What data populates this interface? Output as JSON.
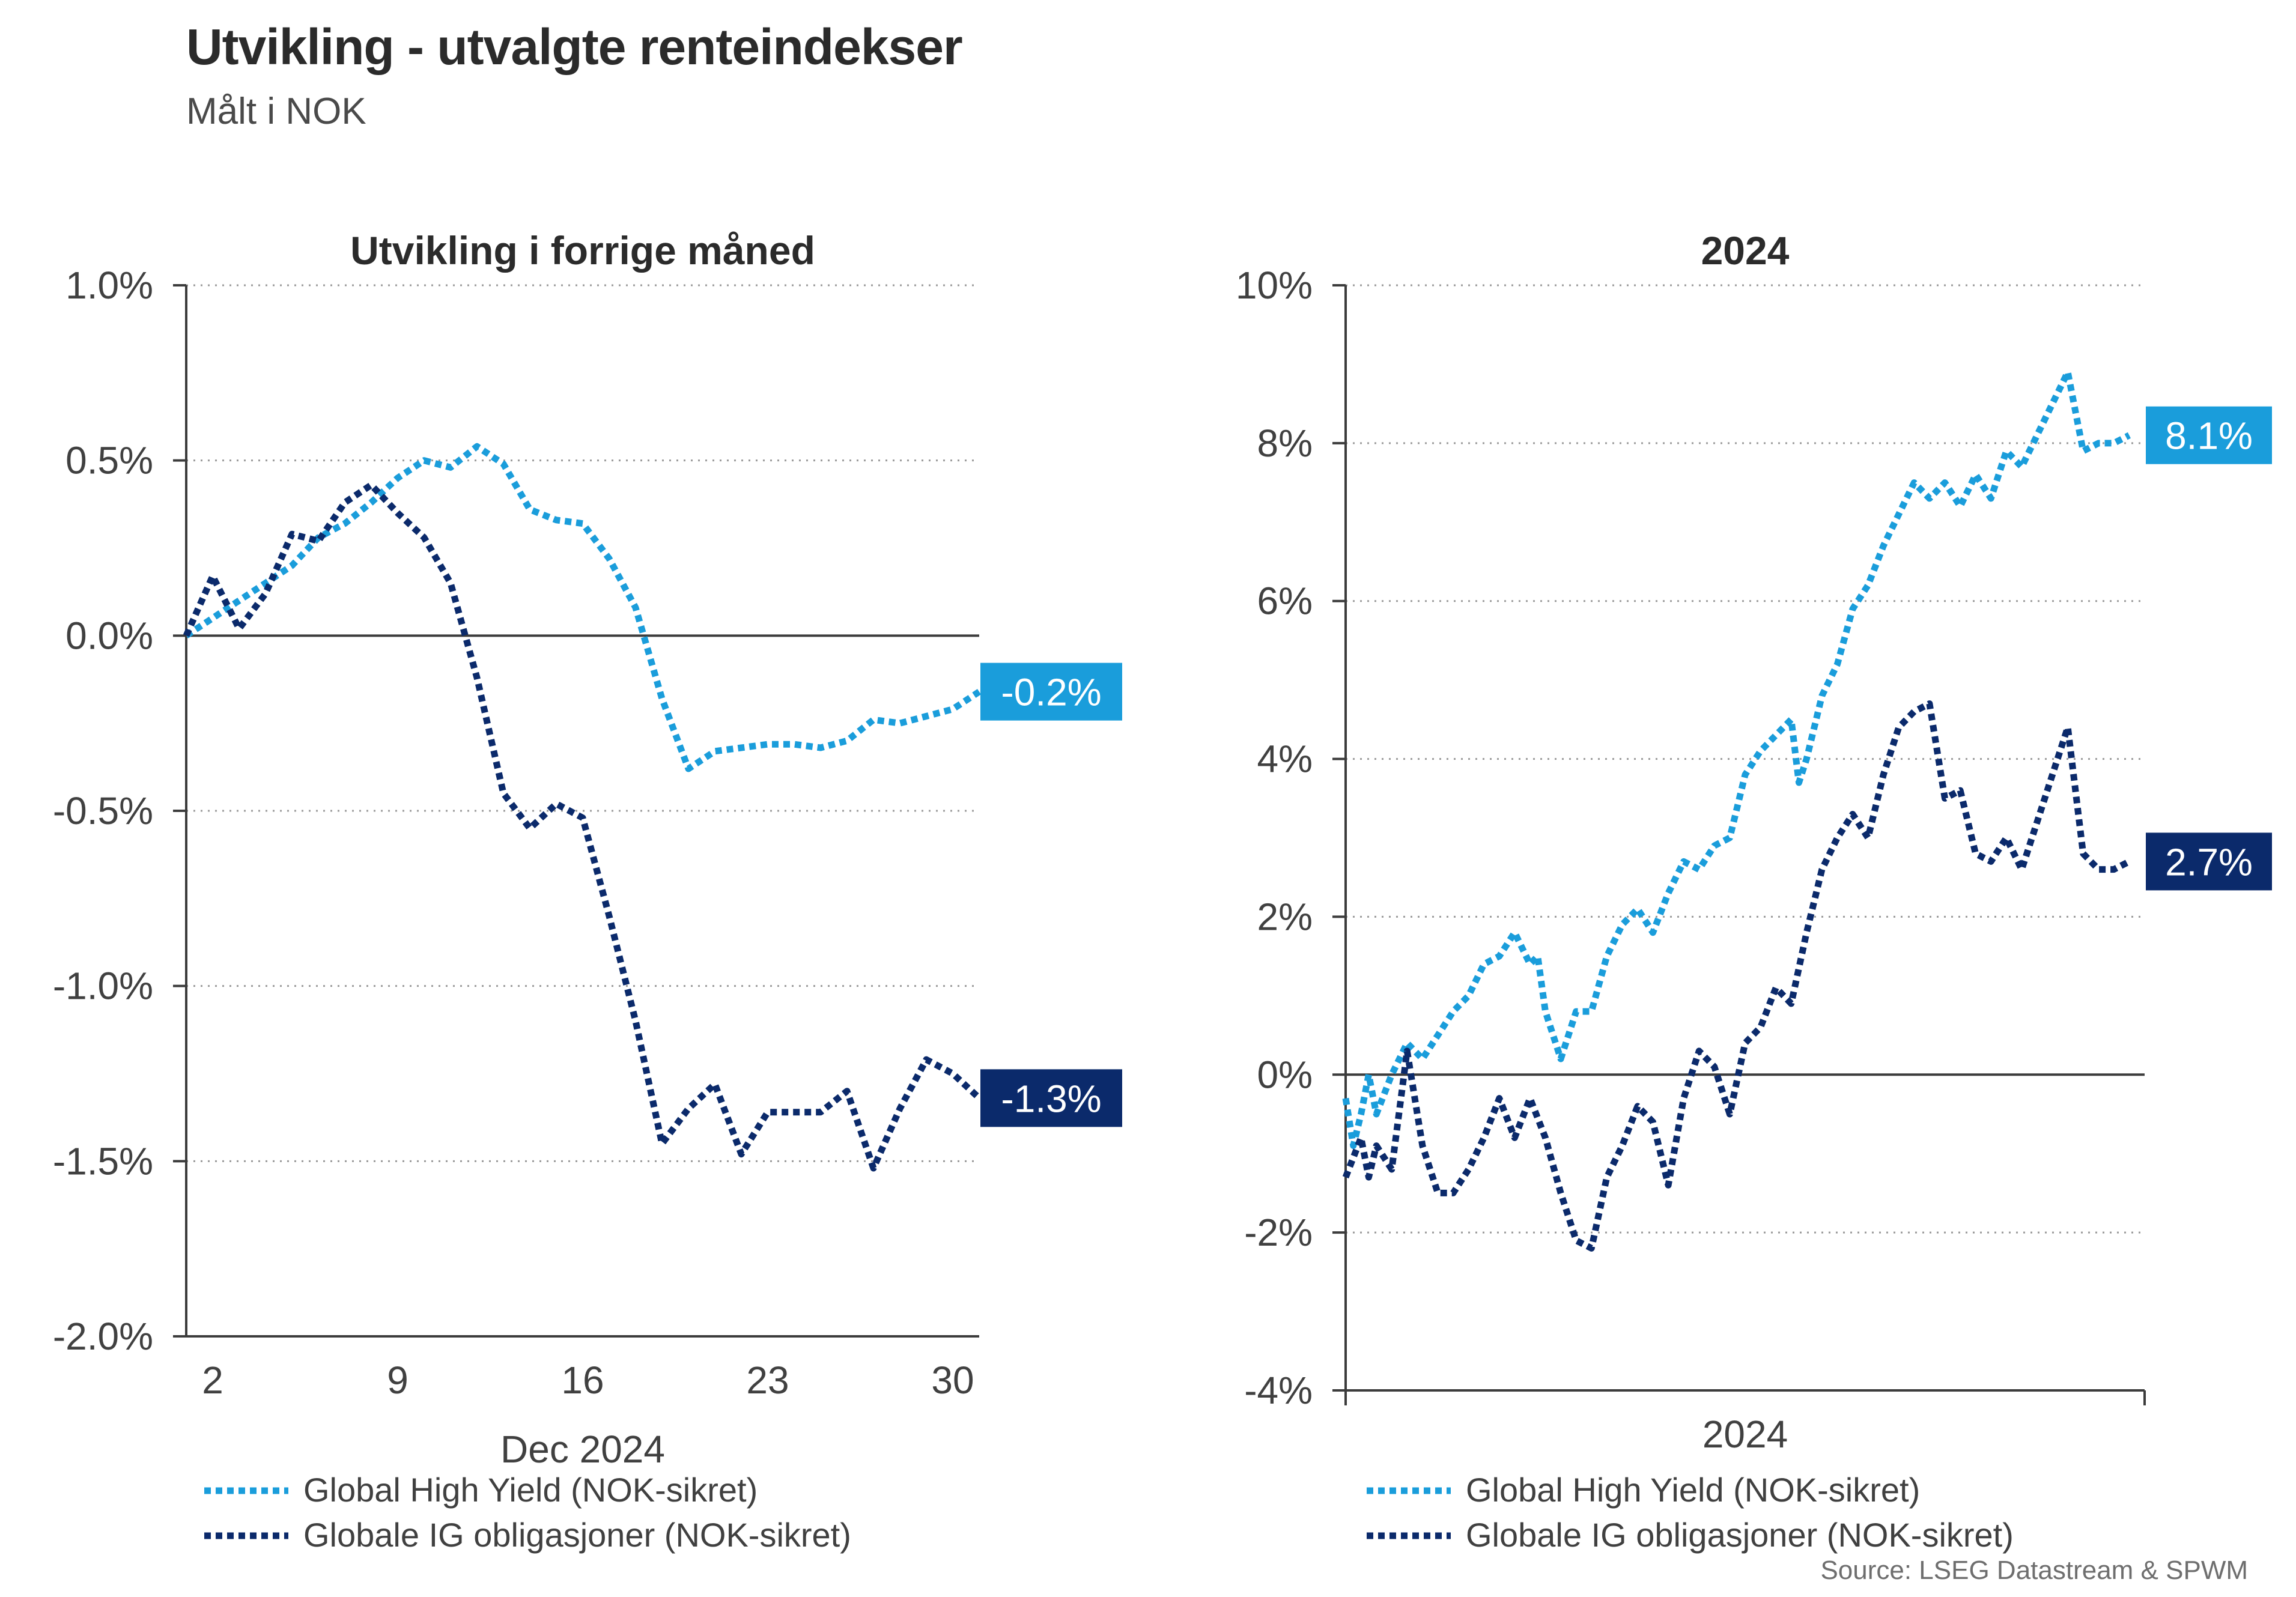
{
  "header": {
    "title": "Utvikling - utvalgte renteindekser",
    "subtitle": "Målt i NOK"
  },
  "source": "Source: LSEG Datastream & SPWM",
  "colors": {
    "high_yield": "#1a9ddb",
    "ig": "#0b2a6b",
    "grid": "#9a9a9a",
    "axis": "#3c3c3c"
  },
  "chart_data": [
    {
      "type": "line",
      "title": "Utvikling i forrige måned",
      "xlabel": "Dec 2024",
      "ylabel": "",
      "x_range": [
        1,
        31
      ],
      "x_ticks": [
        2,
        9,
        16,
        23,
        30
      ],
      "x_tick_labels": [
        "2",
        "9",
        "16",
        "23",
        "30"
      ],
      "ylim": [
        -2.0,
        1.0
      ],
      "y_ticks": [
        1.0,
        0.5,
        0.0,
        -0.5,
        -1.0,
        -1.5,
        -2.0
      ],
      "y_tick_labels": [
        "1.0%",
        "0.5%",
        "0.0%",
        "-0.5%",
        "-1.0%",
        "-1.5%",
        "-2.0%"
      ],
      "grid": true,
      "series": [
        {
          "name": "Global High Yield (NOK-sikret)",
          "color_key": "high_yield",
          "end_label": "-0.2%",
          "points": [
            [
              1,
              0.0
            ],
            [
              2,
              0.05
            ],
            [
              3,
              0.1
            ],
            [
              4,
              0.15
            ],
            [
              5,
              0.2
            ],
            [
              6,
              0.28
            ],
            [
              7,
              0.32
            ],
            [
              8,
              0.38
            ],
            [
              9,
              0.45
            ],
            [
              10,
              0.5
            ],
            [
              11,
              0.48
            ],
            [
              12,
              0.54
            ],
            [
              13,
              0.49
            ],
            [
              14,
              0.36
            ],
            [
              15,
              0.33
            ],
            [
              16,
              0.32
            ],
            [
              17,
              0.22
            ],
            [
              18,
              0.08
            ],
            [
              19,
              -0.18
            ],
            [
              20,
              -0.38
            ],
            [
              21,
              -0.33
            ],
            [
              22,
              -0.32
            ],
            [
              23,
              -0.31
            ],
            [
              24,
              -0.31
            ],
            [
              25,
              -0.32
            ],
            [
              26,
              -0.3
            ],
            [
              27,
              -0.24
            ],
            [
              28,
              -0.25
            ],
            [
              29,
              -0.23
            ],
            [
              30,
              -0.21
            ],
            [
              31,
              -0.16
            ]
          ]
        },
        {
          "name": "Globale IG obligasjoner (NOK-sikret)",
          "color_key": "ig",
          "end_label": "-1.3%",
          "points": [
            [
              1,
              0.0
            ],
            [
              2,
              0.17
            ],
            [
              3,
              0.02
            ],
            [
              4,
              0.12
            ],
            [
              5,
              0.29
            ],
            [
              6,
              0.27
            ],
            [
              7,
              0.38
            ],
            [
              8,
              0.43
            ],
            [
              9,
              0.35
            ],
            [
              10,
              0.28
            ],
            [
              11,
              0.15
            ],
            [
              12,
              -0.12
            ],
            [
              13,
              -0.45
            ],
            [
              14,
              -0.55
            ],
            [
              15,
              -0.48
            ],
            [
              16,
              -0.52
            ],
            [
              17,
              -0.8
            ],
            [
              18,
              -1.1
            ],
            [
              19,
              -1.45
            ],
            [
              20,
              -1.35
            ],
            [
              21,
              -1.28
            ],
            [
              22,
              -1.48
            ],
            [
              23,
              -1.36
            ],
            [
              24,
              -1.36
            ],
            [
              25,
              -1.36
            ],
            [
              26,
              -1.3
            ],
            [
              27,
              -1.52
            ],
            [
              28,
              -1.35
            ],
            [
              29,
              -1.21
            ],
            [
              30,
              -1.25
            ],
            [
              31,
              -1.32
            ]
          ]
        }
      ]
    },
    {
      "type": "line",
      "title": "2024",
      "xlabel": "2024",
      "ylabel": "",
      "x_range": [
        0,
        52
      ],
      "ylim": [
        -4,
        10
      ],
      "y_ticks": [
        10,
        8,
        6,
        4,
        2,
        0,
        -2,
        -4
      ],
      "y_tick_labels": [
        "10%",
        "8%",
        "6%",
        "4%",
        "2%",
        "0%",
        "-2%",
        "-4%"
      ],
      "grid": true,
      "series": [
        {
          "name": "Global High Yield (NOK-sikret)",
          "color_key": "high_yield",
          "end_label": "8.1%",
          "points": [
            [
              0,
              -0.3
            ],
            [
              0.5,
              -0.9
            ],
            [
              1,
              -0.5
            ],
            [
              1.5,
              0.0
            ],
            [
              2,
              -0.5
            ],
            [
              3,
              0.0
            ],
            [
              4,
              0.4
            ],
            [
              5,
              0.2
            ],
            [
              6,
              0.5
            ],
            [
              7,
              0.8
            ],
            [
              8,
              1.0
            ],
            [
              9,
              1.4
            ],
            [
              10,
              1.5
            ],
            [
              11,
              1.8
            ],
            [
              12,
              1.4
            ],
            [
              12.5,
              1.5
            ],
            [
              13,
              0.8
            ],
            [
              14,
              0.2
            ],
            [
              15,
              0.8
            ],
            [
              16,
              0.8
            ],
            [
              17,
              1.5
            ],
            [
              18,
              1.9
            ],
            [
              19,
              2.1
            ],
            [
              20,
              1.8
            ],
            [
              21,
              2.3
            ],
            [
              22,
              2.7
            ],
            [
              23,
              2.6
            ],
            [
              24,
              2.9
            ],
            [
              25,
              3.0
            ],
            [
              26,
              3.8
            ],
            [
              27,
              4.1
            ],
            [
              28,
              4.3
            ],
            [
              29,
              4.5
            ],
            [
              29.5,
              3.7
            ],
            [
              30,
              4.0
            ],
            [
              31,
              4.8
            ],
            [
              32,
              5.2
            ],
            [
              33,
              5.9
            ],
            [
              34,
              6.2
            ],
            [
              35,
              6.7
            ],
            [
              36,
              7.1
            ],
            [
              37,
              7.5
            ],
            [
              38,
              7.3
            ],
            [
              39,
              7.5
            ],
            [
              40,
              7.2
            ],
            [
              41,
              7.6
            ],
            [
              42,
              7.3
            ],
            [
              43,
              7.9
            ],
            [
              44,
              7.7
            ],
            [
              45,
              8.1
            ],
            [
              46,
              8.5
            ],
            [
              47,
              8.9
            ],
            [
              48,
              7.9
            ],
            [
              49,
              8.0
            ],
            [
              50,
              8.0
            ],
            [
              51,
              8.1
            ]
          ]
        },
        {
          "name": "Globale IG obligasjoner (NOK-sikret)",
          "color_key": "ig",
          "end_label": "2.7%",
          "points": [
            [
              0,
              -1.3
            ],
            [
              1,
              -0.8
            ],
            [
              1.5,
              -1.3
            ],
            [
              2,
              -0.9
            ],
            [
              3,
              -1.2
            ],
            [
              4,
              0.3
            ],
            [
              5,
              -0.9
            ],
            [
              6,
              -1.5
            ],
            [
              7,
              -1.5
            ],
            [
              8,
              -1.2
            ],
            [
              9,
              -0.8
            ],
            [
              10,
              -0.3
            ],
            [
              11,
              -0.8
            ],
            [
              12,
              -0.3
            ],
            [
              13,
              -0.8
            ],
            [
              14,
              -1.5
            ],
            [
              15,
              -2.1
            ],
            [
              16,
              -2.2
            ],
            [
              17,
              -1.3
            ],
            [
              18,
              -0.9
            ],
            [
              19,
              -0.4
            ],
            [
              20,
              -0.6
            ],
            [
              21,
              -1.4
            ],
            [
              22,
              -0.3
            ],
            [
              23,
              0.3
            ],
            [
              24,
              0.1
            ],
            [
              25,
              -0.5
            ],
            [
              26,
              0.4
            ],
            [
              27,
              0.6
            ],
            [
              28,
              1.1
            ],
            [
              29,
              0.9
            ],
            [
              30,
              1.8
            ],
            [
              31,
              2.6
            ],
            [
              32,
              3.0
            ],
            [
              33,
              3.3
            ],
            [
              34,
              3.0
            ],
            [
              35,
              3.8
            ],
            [
              36,
              4.4
            ],
            [
              37,
              4.6
            ],
            [
              38,
              4.7
            ],
            [
              39,
              3.5
            ],
            [
              40,
              3.6
            ],
            [
              41,
              2.8
            ],
            [
              42,
              2.7
            ],
            [
              43,
              3.0
            ],
            [
              44,
              2.6
            ],
            [
              45,
              3.2
            ],
            [
              46,
              3.8
            ],
            [
              47,
              4.4
            ],
            [
              48,
              2.8
            ],
            [
              49,
              2.6
            ],
            [
              50,
              2.6
            ],
            [
              51,
              2.7
            ]
          ]
        }
      ]
    }
  ]
}
